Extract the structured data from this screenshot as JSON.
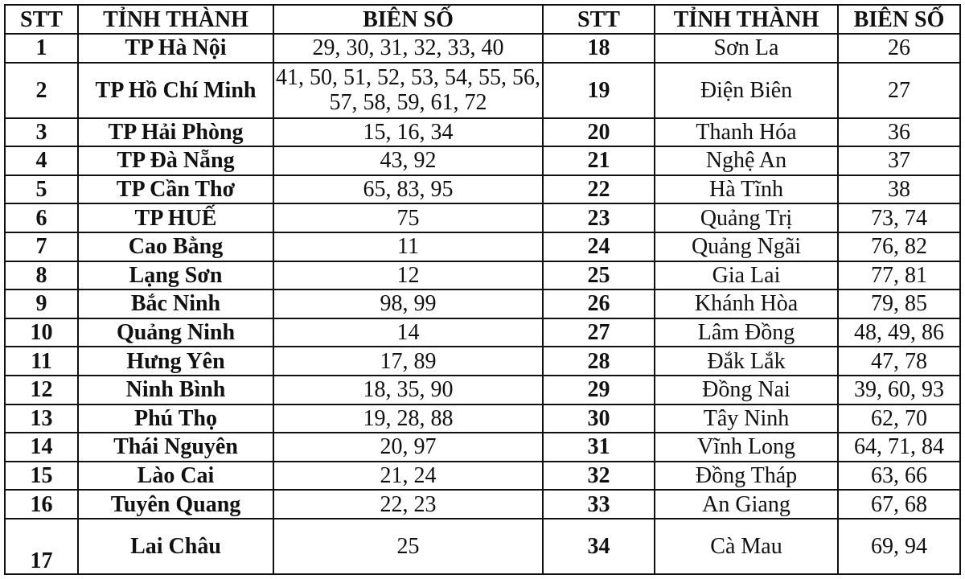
{
  "headers": {
    "stt": "STT",
    "province": "TỈNH THÀNH",
    "plates": "BIÊN SỐ"
  },
  "left": [
    {
      "stt": "1",
      "name": "TP Hà Nội",
      "plates": "29, 30, 31, 32, 33, 40"
    },
    {
      "stt": "2",
      "name": "TP Hồ Chí Minh",
      "plates": "41, 50, 51, 52, 53, 54, 55, 56, 57, 58, 59, 61, 72"
    },
    {
      "stt": "3",
      "name": "TP Hải Phòng",
      "plates": "15, 16, 34"
    },
    {
      "stt": "4",
      "name": "TP Đà Nẵng",
      "plates": "43, 92"
    },
    {
      "stt": "5",
      "name": "TP Cần Thơ",
      "plates": "65, 83, 95"
    },
    {
      "stt": "6",
      "name": "TP HUẾ",
      "plates": "75"
    },
    {
      "stt": "7",
      "name": "Cao Bằng",
      "plates": "11"
    },
    {
      "stt": "8",
      "name": "Lạng Sơn",
      "plates": "12"
    },
    {
      "stt": "9",
      "name": "Bắc Ninh",
      "plates": "98, 99"
    },
    {
      "stt": "10",
      "name": "Quảng Ninh",
      "plates": "14"
    },
    {
      "stt": "11",
      "name": "Hưng Yên",
      "plates": "17, 89"
    },
    {
      "stt": "12",
      "name": "Ninh Bình",
      "plates": "18, 35, 90"
    },
    {
      "stt": "13",
      "name": "Phú Thọ",
      "plates": "19, 28, 88"
    },
    {
      "stt": "14",
      "name": "Thái Nguyên",
      "plates": "20, 97"
    },
    {
      "stt": "15",
      "name": "Lào Cai",
      "plates": "21, 24"
    },
    {
      "stt": "16",
      "name": "Tuyên Quang",
      "plates": "22, 23"
    },
    {
      "stt": "17",
      "name": "Lai Châu",
      "plates": "25"
    }
  ],
  "right": [
    {
      "stt": "18",
      "name": "Sơn La",
      "plates": "26"
    },
    {
      "stt": "19",
      "name": "Điện Biên",
      "plates": "27"
    },
    {
      "stt": "20",
      "name": "Thanh Hóa",
      "plates": "36"
    },
    {
      "stt": "21",
      "name": "Nghệ An",
      "plates": "37"
    },
    {
      "stt": "22",
      "name": "Hà Tĩnh",
      "plates": "38"
    },
    {
      "stt": "23",
      "name": "Quảng Trị",
      "plates": "73, 74"
    },
    {
      "stt": "24",
      "name": "Quảng Ngãi",
      "plates": "76, 82"
    },
    {
      "stt": "25",
      "name": "Gia Lai",
      "plates": "77, 81"
    },
    {
      "stt": "26",
      "name": "Khánh Hòa",
      "plates": "79, 85"
    },
    {
      "stt": "27",
      "name": "Lâm Đồng",
      "plates": "48, 49, 86"
    },
    {
      "stt": "28",
      "name": "Đắk Lắk",
      "plates": "47, 78"
    },
    {
      "stt": "29",
      "name": "Đồng Nai",
      "plates": "39, 60, 93"
    },
    {
      "stt": "30",
      "name": "Tây Ninh",
      "plates": "62, 70"
    },
    {
      "stt": "31",
      "name": "Vĩnh Long",
      "plates": "64, 71, 84"
    },
    {
      "stt": "32",
      "name": "Đồng Tháp",
      "plates": "63, 66"
    },
    {
      "stt": "33",
      "name": "An Giang",
      "plates": "67, 68"
    },
    {
      "stt": "34",
      "name": "Cà Mau",
      "plates": "69, 94"
    }
  ]
}
